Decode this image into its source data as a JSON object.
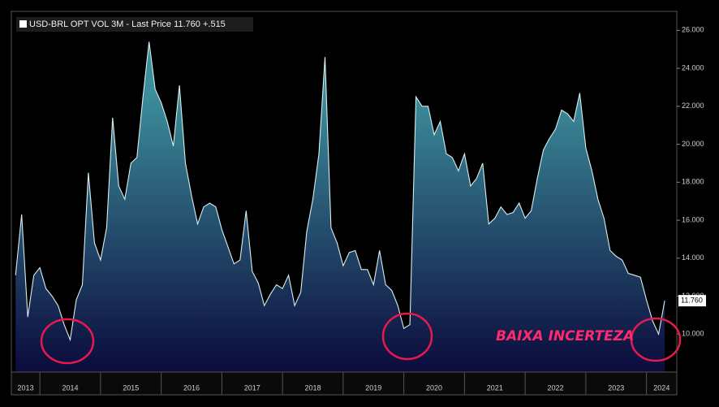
{
  "chart_data": {
    "type": "area",
    "legend_label": "USD-BRL OPT VOL 3M - Last Price 11.760 +.515",
    "last_value_label": "11.760",
    "annotation": "BAIXA INCERTEZA",
    "color": "#d8eef0",
    "fill_top": "#3d8e9c",
    "fill_bottom": "#0b0b3c",
    "x": [
      2013.6,
      2013.7,
      2013.8,
      2013.9,
      2014.0,
      2014.1,
      2014.2,
      2014.3,
      2014.4,
      2014.5,
      2014.6,
      2014.7,
      2014.8,
      2014.9,
      2015.0,
      2015.1,
      2015.2,
      2015.3,
      2015.4,
      2015.5,
      2015.6,
      2015.7,
      2015.8,
      2015.9,
      2016.0,
      2016.1,
      2016.2,
      2016.3,
      2016.4,
      2016.5,
      2016.6,
      2016.7,
      2016.8,
      2016.9,
      2017.0,
      2017.1,
      2017.2,
      2017.3,
      2017.4,
      2017.5,
      2017.6,
      2017.7,
      2017.8,
      2017.9,
      2018.0,
      2018.1,
      2018.2,
      2018.3,
      2018.4,
      2018.5,
      2018.6,
      2018.7,
      2018.8,
      2018.9,
      2019.0,
      2019.1,
      2019.2,
      2019.3,
      2019.4,
      2019.5,
      2019.6,
      2019.7,
      2019.8,
      2019.9,
      2020.0,
      2020.1,
      2020.2,
      2020.3,
      2020.4,
      2020.5,
      2020.6,
      2020.7,
      2020.8,
      2020.9,
      2021.0,
      2021.1,
      2021.2,
      2021.3,
      2021.4,
      2021.5,
      2021.6,
      2021.7,
      2021.8,
      2021.9,
      2022.0,
      2022.1,
      2022.2,
      2022.3,
      2022.4,
      2022.5,
      2022.6,
      2022.7,
      2022.8,
      2022.9,
      2023.0,
      2023.1,
      2023.2,
      2023.3,
      2023.4,
      2023.5,
      2023.6,
      2023.7,
      2023.8,
      2023.9,
      2024.0,
      2024.1,
      2024.2,
      2024.3
    ],
    "values": [
      13.1,
      16.3,
      10.9,
      13.1,
      13.5,
      12.4,
      12.0,
      11.5,
      10.5,
      9.7,
      11.8,
      12.6,
      18.5,
      14.8,
      13.9,
      15.6,
      21.4,
      17.8,
      17.1,
      19.0,
      19.3,
      22.5,
      25.4,
      22.9,
      22.2,
      21.2,
      19.9,
      23.1,
      19.0,
      17.3,
      15.8,
      16.7,
      16.9,
      16.7,
      15.5,
      14.6,
      13.7,
      13.9,
      16.5,
      13.3,
      12.7,
      11.5,
      12.1,
      12.6,
      12.4,
      13.1,
      11.5,
      12.2,
      15.4,
      17.1,
      19.5,
      24.6,
      15.6,
      14.8,
      13.6,
      14.3,
      14.4,
      13.4,
      13.4,
      12.6,
      14.4,
      12.6,
      12.3,
      11.5,
      10.3,
      10.5,
      22.5,
      22.0,
      22.0,
      20.5,
      21.2,
      19.5,
      19.3,
      18.6,
      19.5,
      17.8,
      18.2,
      19.0,
      15.8,
      16.1,
      16.7,
      16.3,
      16.4,
      16.9,
      16.1,
      16.5,
      18.2,
      19.7,
      20.3,
      20.8,
      21.8,
      21.6,
      21.2,
      22.7,
      19.8,
      18.6,
      17.1,
      16.1,
      14.4,
      14.1,
      13.9,
      13.2,
      13.1,
      13.0,
      11.8,
      10.7,
      10.0,
      11.76
    ],
    "xlim": [
      2013.53,
      2024.5
    ],
    "xticks": [
      2013,
      2014,
      2015,
      2016,
      2017,
      2018,
      2019,
      2020,
      2021,
      2022,
      2023,
      2024
    ],
    "ylim": [
      8,
      27
    ],
    "yticks": [
      {
        "value": 10,
        "label": "10.000"
      },
      {
        "value": 12,
        "label": "12.000"
      },
      {
        "value": 14,
        "label": "14.000"
      },
      {
        "value": 16,
        "label": "16.000"
      },
      {
        "value": 18,
        "label": "18.000"
      },
      {
        "value": 20,
        "label": "20.000"
      },
      {
        "value": 22,
        "label": "22.000"
      },
      {
        "value": 24,
        "label": "24.000"
      },
      {
        "value": 26,
        "label": "26.000"
      }
    ]
  }
}
